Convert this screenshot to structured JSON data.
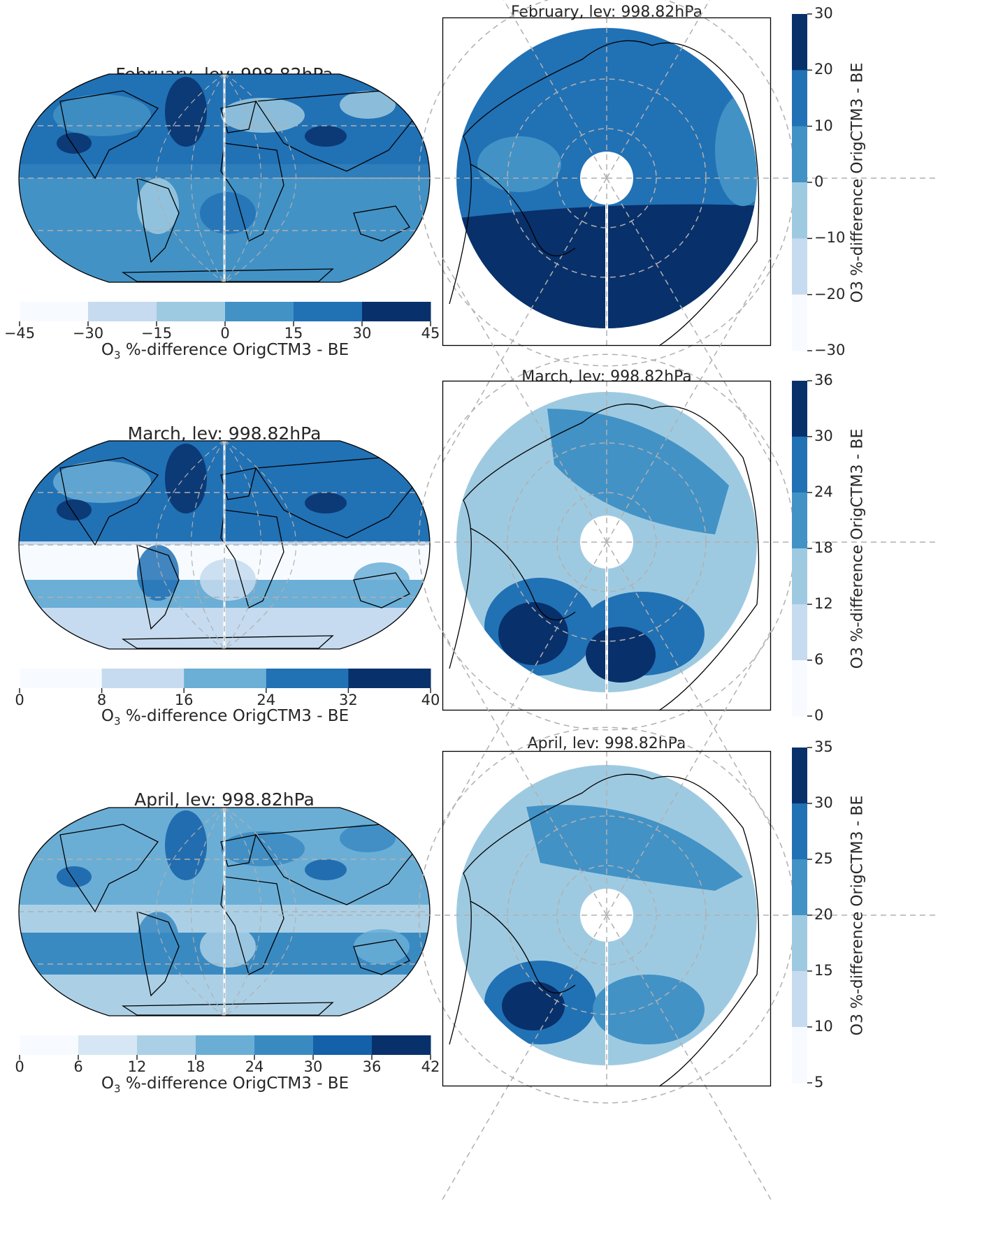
{
  "figure": {
    "rows": [
      {
        "id": "february",
        "global_title": "February, lev: 998.82hPa",
        "polar_title": "February, lev: 998.82hPa",
        "global_colorbar": {
          "label_main": "O",
          "label_sub": "3",
          "label_rest": " %-difference OrigCTM3 - BE",
          "ticks": [
            "−45",
            "−30",
            "−15",
            "0",
            "15",
            "30",
            "45"
          ],
          "colors": [
            "#f7fbff",
            "#c6dbef",
            "#9ecae1",
            "#4292c6",
            "#2171b5",
            "#08306b"
          ]
        },
        "polar_colorbar": {
          "label": "O3 %-difference OrigCTM3 - BE",
          "ticks": [
            "30",
            "20",
            "10",
            "0",
            "−10",
            "−20",
            "−30"
          ],
          "colors": [
            "#08306b",
            "#2171b5",
            "#4292c6",
            "#9ecae1",
            "#c6dbef",
            "#f7fbff"
          ]
        }
      },
      {
        "id": "march",
        "global_title": "March, lev: 998.82hPa",
        "polar_title": "March, lev: 998.82hPa",
        "global_colorbar": {
          "label_main": "O",
          "label_sub": "3",
          "label_rest": " %-difference OrigCTM3 - BE",
          "ticks": [
            "0",
            "8",
            "16",
            "24",
            "32",
            "40"
          ],
          "colors": [
            "#f7fbff",
            "#c6dbef",
            "#6baed6",
            "#2171b5",
            "#08306b"
          ]
        },
        "polar_colorbar": {
          "label": "O3 %-difference OrigCTM3 - BE",
          "ticks": [
            "36",
            "30",
            "24",
            "18",
            "12",
            "6",
            "0"
          ],
          "colors": [
            "#08306b",
            "#2171b5",
            "#4292c6",
            "#9ecae1",
            "#c6dbef",
            "#f7fbff"
          ]
        }
      },
      {
        "id": "april",
        "global_title": "April, lev: 998.82hPa",
        "polar_title": "April, lev: 998.82hPa",
        "global_colorbar": {
          "label_main": "O",
          "label_sub": "3",
          "label_rest": " %-difference OrigCTM3 - BE",
          "ticks": [
            "0",
            "6",
            "12",
            "18",
            "24",
            "30",
            "36",
            "42"
          ],
          "colors": [
            "#f7fbff",
            "#d6e6f4",
            "#abd0e6",
            "#6aaed6",
            "#3a8ac2",
            "#1561a9",
            "#08306b"
          ]
        },
        "polar_colorbar": {
          "label": "O3 %-difference OrigCTM3 - BE",
          "ticks": [
            "35",
            "30",
            "25",
            "20",
            "15",
            "10",
            "5"
          ],
          "colors": [
            "#08306b",
            "#2171b5",
            "#4292c6",
            "#9ecae1",
            "#c6dbef",
            "#f7fbff"
          ]
        }
      }
    ],
    "colors": {
      "background": "#ffffff",
      "coastline": "#000000",
      "gridline": "#b0b0b0"
    }
  }
}
